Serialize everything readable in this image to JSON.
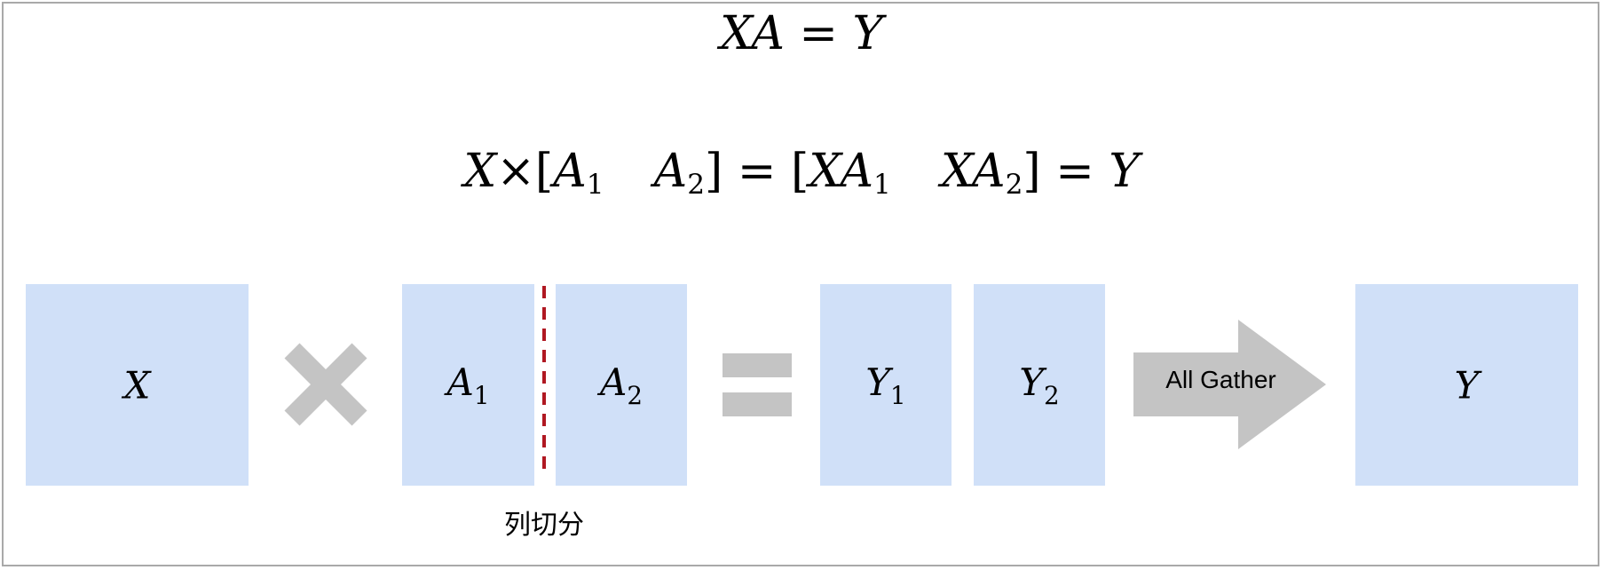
{
  "equations": {
    "top": {
      "X": "X",
      "A": "A",
      "eq": "=",
      "Y": "Y"
    },
    "second": {
      "X": "X",
      "times": "×",
      "lbr1": "[",
      "A1": "A",
      "A1_sub": "1",
      "A2": "A",
      "A2_sub": "2",
      "rbr1": "]",
      "eq1": "=",
      "lbr2": "[",
      "XA1_X": "X",
      "XA1_A": "A",
      "XA1_sub": "1",
      "XA2_X": "X",
      "XA2_A": "A",
      "XA2_sub": "2",
      "rbr2": "]",
      "eq2": "=",
      "Y": "Y"
    }
  },
  "blocks": {
    "x": {
      "label": "X"
    },
    "a1": {
      "label": "A",
      "sub": "1"
    },
    "a2": {
      "label": "A",
      "sub": "2"
    },
    "y1": {
      "label": "Y",
      "sub": "1"
    },
    "y2": {
      "label": "Y",
      "sub": "2"
    },
    "y": {
      "label": "Y"
    }
  },
  "split_label": "列切分",
  "arrow_label": "All Gather",
  "colors": {
    "block_fill": "#d0e0f8",
    "operator_gray": "#c4c4c4",
    "arrow_gray": "#c4c4c4",
    "split_line": "#b01822",
    "frame_border": "#a9a9a9"
  },
  "icons": {
    "multiply": "multiply-icon",
    "equals": "equals-icon",
    "arrow": "right-arrow-icon"
  }
}
